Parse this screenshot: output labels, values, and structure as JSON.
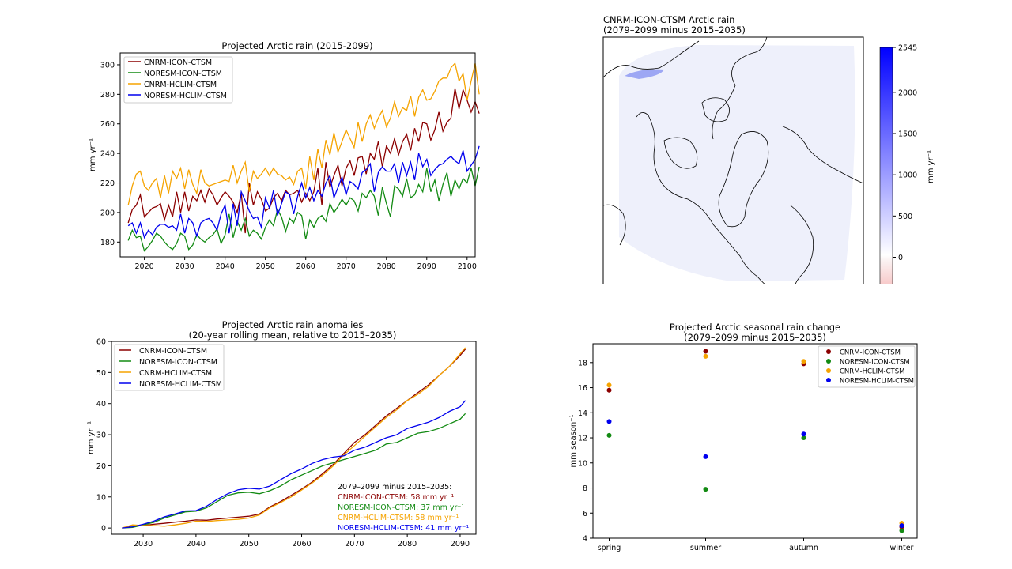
{
  "colors": {
    "CNRM-ICON-CTSM": "#8b0000",
    "NORESM-ICON-CTSM": "#128a12",
    "CNRM-HCLIM-CTSM": "#f5a300",
    "NORESM-HCLIM-CTSM": "#0000ee"
  },
  "chart_data": [
    {
      "id": "ts",
      "type": "line",
      "title": "Projected Arctic rain (2015-2099)",
      "xlabel": "",
      "ylabel": "mm yr⁻¹",
      "xlim": [
        2014,
        2102
      ],
      "ylim": [
        170,
        308
      ],
      "xticks": [
        2020,
        2030,
        2040,
        2050,
        2060,
        2070,
        2080,
        2090,
        2100
      ],
      "yticks": [
        180,
        200,
        220,
        240,
        260,
        280,
        300
      ],
      "legend": "top-left",
      "x_start": 2016,
      "series": [
        {
          "name": "CNRM-ICON-CTSM",
          "values": [
            193,
            202,
            205,
            212,
            197,
            200,
            203,
            204,
            206,
            195,
            205,
            197,
            214,
            200,
            214,
            201,
            211,
            208,
            215,
            207,
            216,
            212,
            205,
            210,
            214,
            211,
            207,
            200,
            213,
            186,
            220,
            205,
            214,
            209,
            201,
            203,
            210,
            213,
            208,
            215,
            212,
            213,
            215,
            207,
            213,
            208,
            214,
            230,
            205,
            234,
            217,
            225,
            232,
            218,
            230,
            235,
            225,
            237,
            238,
            226,
            240,
            236,
            248,
            231,
            245,
            240,
            250,
            239,
            248,
            253,
            242,
            257,
            248,
            261,
            260,
            249,
            256,
            268,
            255,
            261,
            264,
            284,
            270,
            283,
            276,
            268,
            275,
            267
          ]
        },
        {
          "name": "NORESM-ICON-CTSM",
          "values": [
            181,
            188,
            183,
            184,
            174,
            177,
            181,
            186,
            184,
            180,
            177,
            175,
            179,
            186,
            184,
            175,
            178,
            185,
            182,
            180,
            183,
            185,
            189,
            179,
            185,
            199,
            183,
            194,
            188,
            196,
            184,
            188,
            186,
            182,
            190,
            195,
            191,
            202,
            197,
            187,
            196,
            193,
            200,
            198,
            182,
            195,
            190,
            196,
            198,
            194,
            206,
            200,
            204,
            209,
            205,
            210,
            208,
            201,
            213,
            210,
            215,
            211,
            198,
            217,
            206,
            197,
            218,
            216,
            211,
            223,
            210,
            212,
            219,
            214,
            230,
            214,
            222,
            208,
            219,
            227,
            211,
            222,
            216,
            223,
            220,
            230,
            218,
            231
          ]
        },
        {
          "name": "CNRM-HCLIM-CTSM",
          "values": [
            205,
            218,
            226,
            228,
            218,
            215,
            220,
            223,
            210,
            225,
            213,
            228,
            223,
            230,
            216,
            229,
            219,
            213,
            229,
            220,
            218,
            219,
            220,
            221,
            222,
            221,
            232,
            220,
            228,
            234,
            214,
            228,
            223,
            226,
            230,
            225,
            230,
            226,
            225,
            222,
            224,
            219,
            228,
            230,
            216,
            238,
            222,
            243,
            230,
            249,
            239,
            254,
            241,
            248,
            256,
            250,
            244,
            261,
            248,
            260,
            266,
            257,
            264,
            269,
            258,
            264,
            275,
            265,
            271,
            269,
            279,
            265,
            278,
            283,
            276,
            277,
            282,
            289,
            291,
            291,
            298,
            301,
            289,
            294,
            276,
            289,
            301,
            280
          ]
        },
        {
          "name": "NORESM-HCLIM-CTSM",
          "values": [
            191,
            193,
            186,
            193,
            183,
            188,
            185,
            190,
            192,
            192,
            190,
            191,
            188,
            199,
            186,
            196,
            193,
            184,
            193,
            195,
            196,
            193,
            188,
            199,
            205,
            186,
            206,
            191,
            214,
            208,
            201,
            196,
            197,
            190,
            210,
            203,
            215,
            198,
            206,
            214,
            212,
            199,
            211,
            220,
            210,
            217,
            208,
            215,
            211,
            220,
            225,
            210,
            217,
            224,
            212,
            221,
            219,
            216,
            227,
            229,
            233,
            214,
            227,
            231,
            228,
            228,
            233,
            220,
            234,
            225,
            234,
            222,
            240,
            231,
            236,
            225,
            229,
            232,
            233,
            236,
            238,
            235,
            233,
            242,
            228,
            232,
            236,
            245
          ]
        }
      ]
    },
    {
      "id": "map",
      "type": "heatmap",
      "title": "CNRM-ICON-CTSM Arctic rain",
      "subtitle": "(2079–2099 minus 2015–2035)",
      "colorbar_label": "mm yr⁻¹",
      "colorbar_ticks": [
        0,
        500,
        1000,
        1500,
        2000,
        2545
      ],
      "colorbar_tick_labels": [
        "0",
        "500",
        "1000",
        "1500",
        "2000",
        "2545"
      ],
      "colorbar_range": [
        -350,
        2545
      ]
    },
    {
      "id": "anom",
      "type": "line",
      "title": "Projected Arctic rain anomalies",
      "subtitle": "(20-year rolling mean, relative to 2015–2035)",
      "xlabel": "",
      "ylabel": "mm yr⁻¹",
      "xlim": [
        2024,
        2093
      ],
      "ylim": [
        -2,
        60
      ],
      "xticks": [
        2030,
        2040,
        2050,
        2060,
        2070,
        2080,
        2090
      ],
      "yticks": [
        0,
        10,
        20,
        30,
        40,
        50,
        60
      ],
      "legend": "top-left",
      "series": [
        {
          "name": "CNRM-ICON-CTSM",
          "points": [
            [
              2026,
              0
            ],
            [
              2028,
              0.8
            ],
            [
              2030,
              0.8
            ],
            [
              2032,
              1.2
            ],
            [
              2034,
              1.5
            ],
            [
              2036,
              1.9
            ],
            [
              2038,
              2.2
            ],
            [
              2040,
              2.6
            ],
            [
              2042,
              2.5
            ],
            [
              2044,
              2.9
            ],
            [
              2046,
              3.2
            ],
            [
              2048,
              3.5
            ],
            [
              2050,
              3.8
            ],
            [
              2052,
              4.5
            ],
            [
              2054,
              6.8
            ],
            [
              2056,
              8.5
            ],
            [
              2058,
              10.5
            ],
            [
              2060,
              12.5
            ],
            [
              2062,
              14.8
            ],
            [
              2064,
              17.5
            ],
            [
              2066,
              20.5
            ],
            [
              2068,
              24
            ],
            [
              2070,
              27.5
            ],
            [
              2072,
              30
            ],
            [
              2074,
              33
            ],
            [
              2076,
              36
            ],
            [
              2078,
              38.5
            ],
            [
              2080,
              41
            ],
            [
              2082,
              43.5
            ],
            [
              2084,
              46
            ],
            [
              2086,
              49
            ],
            [
              2088,
              52
            ],
            [
              2090,
              55.5
            ],
            [
              2091,
              57.5
            ]
          ]
        },
        {
          "name": "NORESM-ICON-CTSM",
          "points": [
            [
              2026,
              0
            ],
            [
              2028,
              0.2
            ],
            [
              2030,
              1
            ],
            [
              2032,
              1.8
            ],
            [
              2034,
              3.2
            ],
            [
              2036,
              4.2
            ],
            [
              2038,
              5.2
            ],
            [
              2040,
              5.4
            ],
            [
              2042,
              6.5
            ],
            [
              2044,
              8.5
            ],
            [
              2046,
              10.5
            ],
            [
              2048,
              11.3
            ],
            [
              2050,
              11.5
            ],
            [
              2052,
              11
            ],
            [
              2054,
              12
            ],
            [
              2056,
              13.5
            ],
            [
              2058,
              15.5
            ],
            [
              2060,
              17
            ],
            [
              2062,
              18.5
            ],
            [
              2064,
              20
            ],
            [
              2066,
              21
            ],
            [
              2068,
              22
            ],
            [
              2070,
              23
            ],
            [
              2072,
              24
            ],
            [
              2074,
              25
            ],
            [
              2076,
              27
            ],
            [
              2078,
              27.5
            ],
            [
              2080,
              29
            ],
            [
              2082,
              30.5
            ],
            [
              2084,
              31
            ],
            [
              2086,
              32
            ],
            [
              2088,
              33.5
            ],
            [
              2090,
              35
            ],
            [
              2091,
              36.8
            ]
          ]
        },
        {
          "name": "CNRM-HCLIM-CTSM",
          "points": [
            [
              2026,
              0
            ],
            [
              2028,
              1
            ],
            [
              2030,
              0.8
            ],
            [
              2032,
              0.8
            ],
            [
              2034,
              0.6
            ],
            [
              2036,
              1
            ],
            [
              2038,
              1.5
            ],
            [
              2040,
              2.2
            ],
            [
              2042,
              2.1
            ],
            [
              2044,
              2.4
            ],
            [
              2046,
              2.6
            ],
            [
              2048,
              2.8
            ],
            [
              2050,
              3.2
            ],
            [
              2052,
              4.2
            ],
            [
              2054,
              6.5
            ],
            [
              2056,
              8.2
            ],
            [
              2058,
              10
            ],
            [
              2060,
              12.2
            ],
            [
              2062,
              14.5
            ],
            [
              2064,
              17
            ],
            [
              2066,
              20
            ],
            [
              2068,
              23.5
            ],
            [
              2070,
              26.5
            ],
            [
              2072,
              29.5
            ],
            [
              2074,
              32.5
            ],
            [
              2076,
              35.5
            ],
            [
              2078,
              38
            ],
            [
              2080,
              41
            ],
            [
              2082,
              43
            ],
            [
              2084,
              45.5
            ],
            [
              2086,
              49
            ],
            [
              2088,
              52
            ],
            [
              2090,
              56
            ],
            [
              2091,
              58
            ]
          ]
        },
        {
          "name": "NORESM-HCLIM-CTSM",
          "points": [
            [
              2026,
              0
            ],
            [
              2028,
              0.4
            ],
            [
              2030,
              1.2
            ],
            [
              2032,
              2.2
            ],
            [
              2034,
              3.6
            ],
            [
              2036,
              4.5
            ],
            [
              2038,
              5.5
            ],
            [
              2040,
              5.6
            ],
            [
              2042,
              7
            ],
            [
              2044,
              9.2
            ],
            [
              2046,
              11
            ],
            [
              2048,
              12.3
            ],
            [
              2050,
              12.8
            ],
            [
              2052,
              12.5
            ],
            [
              2054,
              13.5
            ],
            [
              2056,
              15.5
            ],
            [
              2058,
              17.5
            ],
            [
              2060,
              19
            ],
            [
              2062,
              20.8
            ],
            [
              2064,
              22
            ],
            [
              2066,
              22.8
            ],
            [
              2068,
              23.2
            ],
            [
              2070,
              25
            ],
            [
              2072,
              26
            ],
            [
              2074,
              27.5
            ],
            [
              2076,
              29
            ],
            [
              2078,
              30
            ],
            [
              2080,
              32
            ],
            [
              2082,
              33
            ],
            [
              2084,
              34
            ],
            [
              2086,
              35.5
            ],
            [
              2088,
              37.5
            ],
            [
              2090,
              39
            ],
            [
              2091,
              41
            ]
          ]
        }
      ],
      "annotation": {
        "heading": "2079–2099 minus 2015–2035:",
        "lines": [
          {
            "name": "CNRM-ICON-CTSM",
            "value": "58"
          },
          {
            "name": "NORESM-ICON-CTSM",
            "value": "37"
          },
          {
            "name": "CNRM-HCLIM-CTSM",
            "value": "58"
          },
          {
            "name": "NORESM-HCLIM-CTSM",
            "value": "41"
          }
        ],
        "unit": "mm yr⁻¹"
      }
    },
    {
      "id": "season",
      "type": "scatter",
      "title": "Projected Arctic seasonal rain change",
      "subtitle": "(2079–2099 minus 2015–2035)",
      "xlabel": "",
      "ylabel": "mm season⁻¹",
      "categories": [
        "spring",
        "summer",
        "autumn",
        "winter"
      ],
      "ylim": [
        4,
        19.5
      ],
      "yticks": [
        4,
        6,
        8,
        10,
        12,
        14,
        16,
        18
      ],
      "legend": "top-right",
      "series": [
        {
          "name": "CNRM-ICON-CTSM",
          "values": [
            15.8,
            18.9,
            17.9,
            4.9
          ]
        },
        {
          "name": "NORESM-ICON-CTSM",
          "values": [
            12.2,
            7.9,
            12.0,
            4.6
          ]
        },
        {
          "name": "CNRM-HCLIM-CTSM",
          "values": [
            16.2,
            18.5,
            18.1,
            5.2
          ]
        },
        {
          "name": "NORESM-HCLIM-CTSM",
          "values": [
            13.3,
            10.5,
            12.3,
            5.0
          ]
        }
      ]
    }
  ]
}
